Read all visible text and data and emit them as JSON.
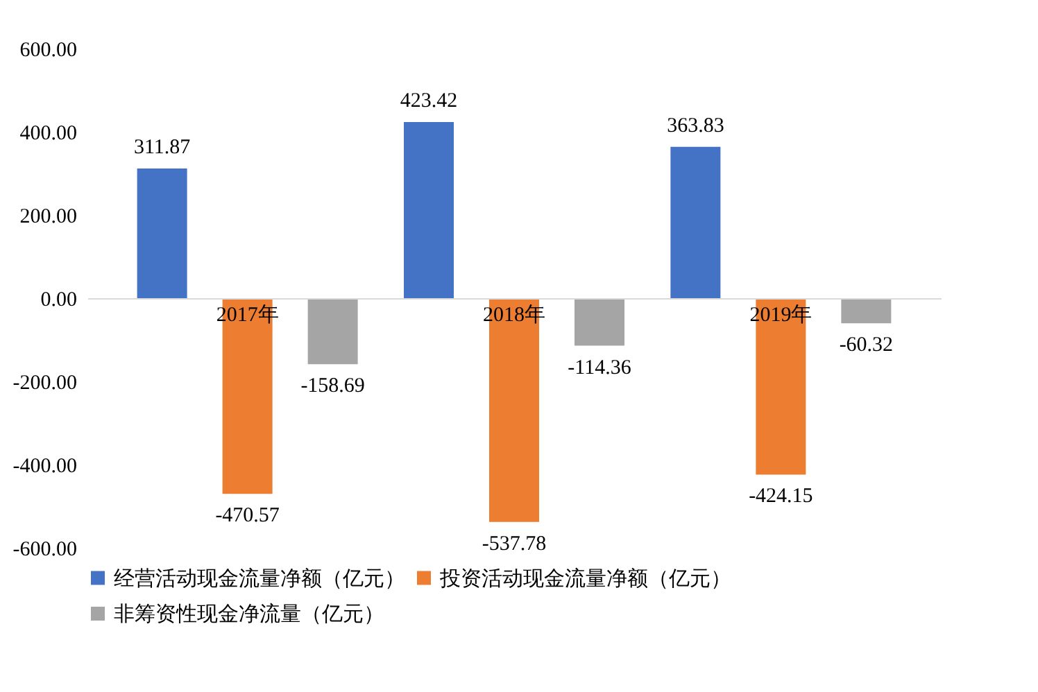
{
  "chart_data": {
    "type": "bar",
    "categories": [
      "2017年",
      "2018年",
      "2019年"
    ],
    "series": [
      {
        "name": "经营活动现金流量净额（亿元）",
        "color": "#4472c4",
        "values": [
          311.87,
          423.42,
          363.83
        ]
      },
      {
        "name": "投资活动现金流量净额（亿元）",
        "color": "#ed7d31",
        "values": [
          -470.57,
          -537.78,
          -424.15
        ]
      },
      {
        "name": "非筹资性现金净流量（亿元）",
        "color": "#a5a5a5",
        "values": [
          -158.69,
          -114.36,
          -60.32
        ]
      }
    ],
    "ylim": [
      -600,
      600
    ],
    "yticks": [
      {
        "value": -600,
        "label": "-600.00"
      },
      {
        "value": -400,
        "label": "-400.00"
      },
      {
        "value": -200,
        "label": "-200.00"
      },
      {
        "value": 0,
        "label": "0.00"
      },
      {
        "value": 200,
        "label": "200.00"
      },
      {
        "value": 400,
        "label": "400.00"
      },
      {
        "value": 600,
        "label": "600.00"
      }
    ],
    "data_labels": true,
    "grid": false,
    "legend": "bottom"
  }
}
